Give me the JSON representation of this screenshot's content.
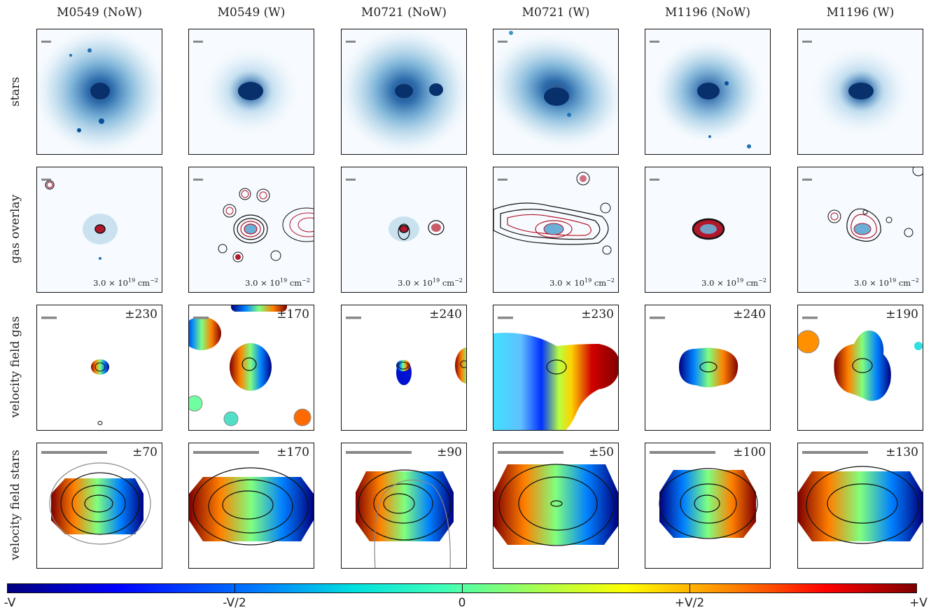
{
  "columns": [
    {
      "title": "M0549 (NoW)"
    },
    {
      "title": "M0549 (W)"
    },
    {
      "title": "M0721 (NoW)"
    },
    {
      "title": "M0721 (W)"
    },
    {
      "title": "M1196 (NoW)"
    },
    {
      "title": "M1196 (W)"
    }
  ],
  "rows": [
    {
      "label": "stars"
    },
    {
      "label": "gas overlay"
    },
    {
      "label": "velocity field gas"
    },
    {
      "label": "velocity field stars"
    }
  ],
  "gas_overlay_density": {
    "base": "3.0 × 10",
    "exp": "19",
    "unit": " cm",
    "unit_exp": "−2"
  },
  "velocity_gas": [
    "±230",
    "±170",
    "±240",
    "±230",
    "±240",
    "±190"
  ],
  "velocity_stars": [
    "±70",
    "±170",
    "±90",
    "±50",
    "±100",
    "±130"
  ],
  "colorbar": {
    "ticks": [
      {
        "label": "-V",
        "frac": 0
      },
      {
        "label": "-V/2",
        "frac": 0.25
      },
      {
        "label": "0",
        "frac": 0.5
      },
      {
        "label": "+V/2",
        "frac": 0.75
      },
      {
        "label": "+V",
        "frac": 1
      }
    ],
    "colors": {
      "neg": "#00007f",
      "mid": "#7fff7f",
      "pos": "#7f0000"
    }
  },
  "colors": {
    "stars": "#08519c",
    "contour_red": "#b2182b",
    "contour_black": "#111111",
    "scalebar": "#888888"
  }
}
